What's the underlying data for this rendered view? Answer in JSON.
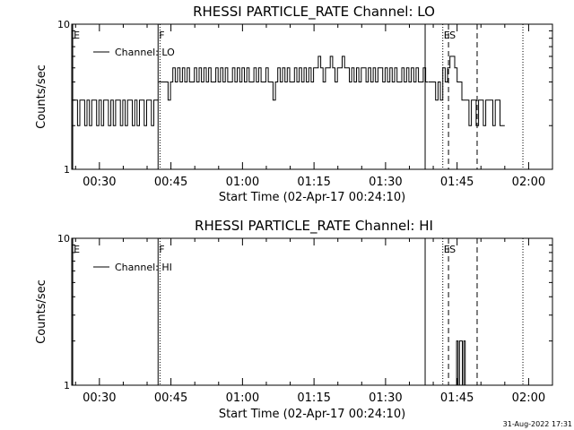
{
  "footer": {
    "timestamp": "31-Aug-2022 17:31"
  },
  "chart_data": [
    {
      "type": "line",
      "title": "RHESSI PARTICLE_RATE Channel: LO",
      "xlabel": "Start Time (02-Apr-17 00:24:10)",
      "ylabel": "Counts/sec",
      "y_scale": "log",
      "ylim": [
        1,
        10
      ],
      "y_ticks": [
        "1",
        "10"
      ],
      "xlim_minutes": [
        24.2,
        125.0
      ],
      "x_ticks": [
        {
          "minute": 30,
          "label": "00:30"
        },
        {
          "minute": 45,
          "label": "00:45"
        },
        {
          "minute": 60,
          "label": "01:00"
        },
        {
          "minute": 75,
          "label": "01:15"
        },
        {
          "minute": 90,
          "label": "01:30"
        },
        {
          "minute": 105,
          "label": "01:45"
        },
        {
          "minute": 120,
          "label": "02:00"
        }
      ],
      "legend": {
        "entry": "Channel: LO",
        "placement": "top-left"
      },
      "markers": [
        {
          "minute": 24.4,
          "style": "solid",
          "label": "E"
        },
        {
          "minute": 42.3,
          "style": "solid",
          "label": "F"
        },
        {
          "minute": 42.7,
          "style": "dotted",
          "label": ""
        },
        {
          "minute": 98.3,
          "style": "solid",
          "label": ""
        },
        {
          "minute": 102.0,
          "style": "dotted",
          "label": "E"
        },
        {
          "minute": 103.2,
          "style": "dashed",
          "label": "S"
        },
        {
          "minute": 109.2,
          "style": "dashed",
          "label": ""
        },
        {
          "minute": 118.8,
          "style": "dotted",
          "label": ""
        }
      ],
      "series": [
        {
          "name": "Channel: LO",
          "segments": [
            {
              "minute_start": 24.4,
              "minute_step": 0.5,
              "values": [
                3,
                3,
                2,
                3,
                3,
                2,
                3,
                2,
                3,
                3,
                2,
                3,
                2,
                3,
                3,
                2,
                3,
                2,
                3,
                3,
                2,
                3,
                2,
                3,
                3,
                2,
                3,
                2,
                3,
                3,
                2,
                3,
                3,
                2,
                3,
                3
              ]
            },
            {
              "minute_start": 42.4,
              "minute_step": 0.5,
              "values": [
                4,
                4,
                4,
                4,
                3,
                4,
                5,
                4,
                5,
                4,
                5,
                4,
                5,
                4,
                4,
                5,
                4,
                5,
                4,
                5,
                4,
                5,
                4,
                4,
                5,
                4,
                5,
                4,
                5,
                4,
                4,
                5,
                4,
                5,
                4,
                5,
                4,
                5,
                4,
                4,
                5,
                4,
                5,
                4,
                4,
                5,
                4,
                4,
                3,
                4,
                5,
                4,
                5,
                4,
                5,
                4,
                4,
                5,
                4,
                5,
                4,
                5,
                4,
                5,
                4,
                5,
                5,
                6,
                5,
                4,
                5,
                5,
                6,
                5,
                4,
                5,
                5,
                6,
                5,
                5,
                4,
                5,
                4,
                5,
                4,
                5,
                5,
                4,
                5,
                4,
                5,
                4,
                5,
                5,
                4,
                5,
                4,
                5,
                4,
                5,
                4,
                4,
                5,
                4,
                5,
                4,
                5,
                4,
                5,
                4,
                4,
                5,
                4
              ]
            },
            {
              "minute_start": 99.0,
              "minute_step": 0.5,
              "values": [
                4,
                4,
                4,
                3,
                4,
                3,
                5,
                4,
                5,
                6,
                6,
                5,
                4,
                4,
                3,
                3,
                3,
                2,
                3,
                3,
                2,
                3,
                3,
                2,
                3,
                3,
                3,
                2,
                3,
                3,
                2,
                2
              ]
            }
          ]
        }
      ]
    },
    {
      "type": "line",
      "title": "RHESSI PARTICLE_RATE Channel: HI",
      "xlabel": "Start Time (02-Apr-17 00:24:10)",
      "ylabel": "Counts/sec",
      "y_scale": "log",
      "ylim": [
        1,
        10
      ],
      "y_ticks": [
        "1",
        "10"
      ],
      "xlim_minutes": [
        24.2,
        125.0
      ],
      "x_ticks": [
        {
          "minute": 30,
          "label": "00:30"
        },
        {
          "minute": 45,
          "label": "00:45"
        },
        {
          "minute": 60,
          "label": "01:00"
        },
        {
          "minute": 75,
          "label": "01:15"
        },
        {
          "minute": 90,
          "label": "01:30"
        },
        {
          "minute": 105,
          "label": "01:45"
        },
        {
          "minute": 120,
          "label": "02:00"
        }
      ],
      "legend": {
        "entry": "Channel: HI",
        "placement": "top-left"
      },
      "markers": [
        {
          "minute": 24.4,
          "style": "solid",
          "label": "E"
        },
        {
          "minute": 42.3,
          "style": "solid",
          "label": "F"
        },
        {
          "minute": 42.7,
          "style": "dotted",
          "label": ""
        },
        {
          "minute": 98.3,
          "style": "solid",
          "label": ""
        },
        {
          "minute": 102.0,
          "style": "dotted",
          "label": "E"
        },
        {
          "minute": 103.2,
          "style": "dashed",
          "label": "S"
        },
        {
          "minute": 109.2,
          "style": "dashed",
          "label": ""
        },
        {
          "minute": 118.8,
          "style": "dotted",
          "label": ""
        }
      ],
      "series": [
        {
          "name": "Channel: HI",
          "segments": [
            {
              "minute_start": 104.6,
              "minute_step": 0.3,
              "values": [
                1,
                2,
                1,
                2,
                2,
                1,
                2,
                1
              ]
            }
          ]
        }
      ]
    }
  ]
}
